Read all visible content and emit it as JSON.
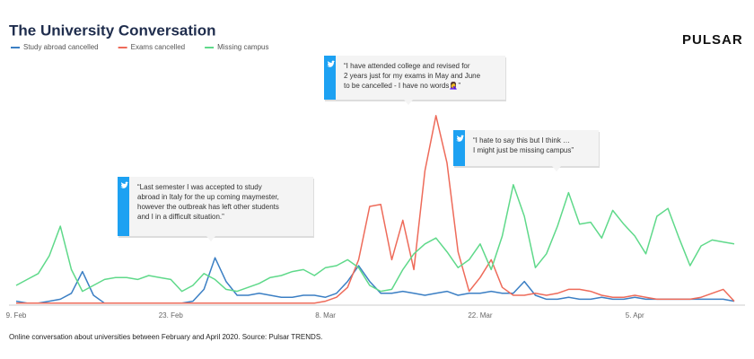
{
  "chart_data": {
    "type": "line",
    "title": "The University Conversation",
    "brand": "PULSAR",
    "source": "Online conversation about universities between February and April 2020. Source: Pulsar TRENDS.",
    "categories": [
      "9. Feb",
      null,
      null,
      null,
      null,
      null,
      null,
      null,
      null,
      null,
      null,
      null,
      null,
      null,
      "23. Feb",
      null,
      null,
      null,
      null,
      null,
      null,
      null,
      null,
      null,
      null,
      null,
      null,
      null,
      "8. Mar",
      null,
      null,
      null,
      null,
      null,
      null,
      null,
      null,
      null,
      null,
      null,
      null,
      null,
      "22. Mar",
      null,
      null,
      null,
      null,
      null,
      null,
      null,
      null,
      null,
      null,
      null,
      null,
      null,
      "5. Apr",
      null,
      null,
      null,
      null,
      null,
      null,
      null,
      null,
      null
    ],
    "ylim": [
      0,
      100
    ],
    "grid": false,
    "series": [
      {
        "name": "Study abroad cancelled",
        "color": "#3b7fc4",
        "values": [
          2,
          1,
          1,
          2,
          3,
          6,
          17,
          5,
          1,
          1,
          1,
          1,
          1,
          1,
          1,
          1,
          2,
          8,
          24,
          12,
          5,
          5,
          6,
          5,
          4,
          4,
          5,
          5,
          4,
          6,
          12,
          20,
          12,
          6,
          6,
          7,
          6,
          5,
          6,
          7,
          5,
          6,
          6,
          7,
          6,
          6,
          12,
          5,
          3,
          3,
          4,
          3,
          3,
          4,
          3,
          3,
          4,
          3,
          3,
          3,
          3,
          3,
          3,
          3,
          3,
          2
        ]
      },
      {
        "name": "Exams cancelled",
        "color": "#ee6b5a",
        "values": [
          1,
          1,
          1,
          1,
          1,
          1,
          1,
          1,
          1,
          1,
          1,
          1,
          1,
          1,
          1,
          1,
          1,
          1,
          1,
          1,
          1,
          1,
          1,
          1,
          1,
          1,
          1,
          1,
          2,
          4,
          9,
          23,
          50,
          51,
          23,
          43,
          18,
          68,
          96,
          72,
          27,
          7,
          14,
          23,
          9,
          5,
          5,
          6,
          5,
          6,
          8,
          8,
          7,
          5,
          4,
          4,
          5,
          4,
          3,
          3,
          3,
          3,
          4,
          6,
          8,
          2
        ]
      },
      {
        "name": "Missing campus",
        "color": "#5fd98a",
        "values": [
          10,
          13,
          16,
          25,
          40,
          18,
          7,
          10,
          13,
          14,
          14,
          13,
          15,
          14,
          13,
          7,
          10,
          16,
          13,
          8,
          7,
          9,
          11,
          14,
          15,
          17,
          18,
          15,
          19,
          20,
          23,
          19,
          10,
          7,
          8,
          18,
          26,
          31,
          34,
          27,
          19,
          23,
          31,
          18,
          35,
          61,
          45,
          19,
          26,
          40,
          57,
          41,
          42,
          34,
          48,
          41,
          35,
          26,
          45,
          49,
          34,
          20,
          30,
          33,
          32,
          31
        ]
      }
    ],
    "annotations": [
      {
        "lines": [
          "“Last semester I was accepted to study",
          "abroad in Italy for the up coming maymester,",
          "however the outbreak has left other students",
          "and I in a difficult situation.”"
        ]
      },
      {
        "lines": [
          "“I have attended college and revised for",
          "2 years just for my exams in May and June",
          "to be cancelled - I have no words🤦‍♀️”"
        ]
      },
      {
        "lines": [
          "“I hate to say this but I think …",
          "I might just be missing campus”"
        ]
      }
    ]
  }
}
